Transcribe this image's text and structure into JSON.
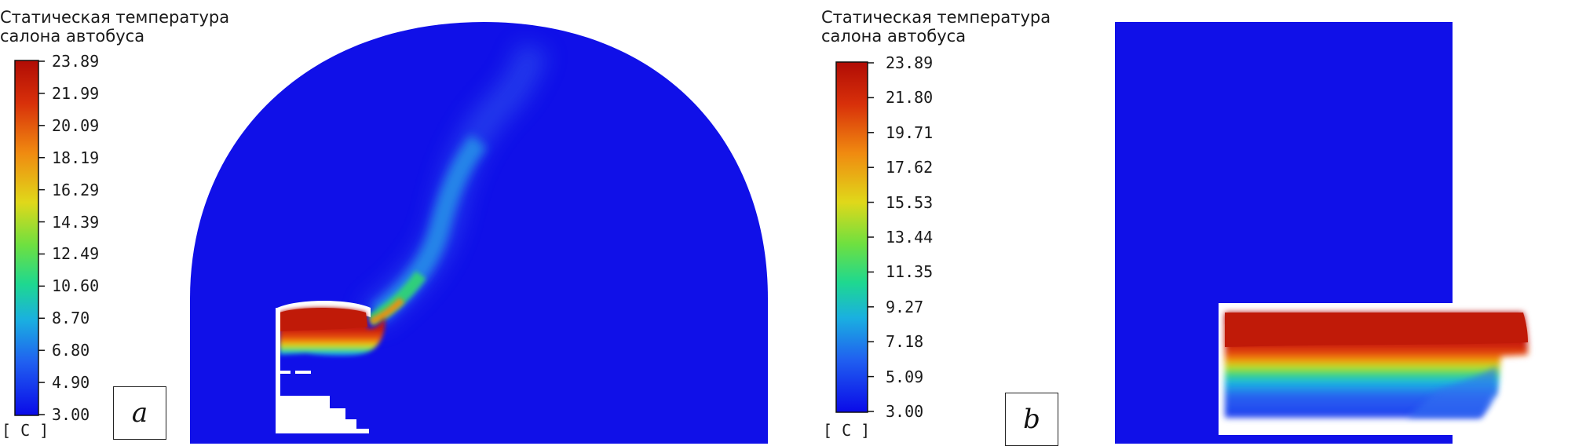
{
  "figure": {
    "panel_a": {
      "legend_title_line1": "Статическая температура",
      "legend_title_line2": "салона автобуса",
      "unit": "[ C ]",
      "ticks": [
        "23.89",
        "21.99",
        "20.09",
        "18.19",
        "16.29",
        "14.39",
        "12.49",
        "10.60",
        "8.70",
        "6.80",
        "4.90",
        "3.00"
      ],
      "label": "a"
    },
    "panel_b": {
      "legend_title_line1": "Статическая температура",
      "legend_title_line2": "салона автобуса",
      "unit": "[ C ]",
      "ticks": [
        "23.89",
        "21.80",
        "19.71",
        "17.62",
        "15.53",
        "13.44",
        "11.35",
        "9.27",
        "7.18",
        "5.09",
        "3.00"
      ],
      "label": "b"
    },
    "colors": {
      "blue": "#1010e8",
      "cyan": "#1ec8d8",
      "green": "#30d860",
      "yellow": "#d8e020",
      "orange": "#f08a10",
      "red": "#c01a08"
    }
  }
}
